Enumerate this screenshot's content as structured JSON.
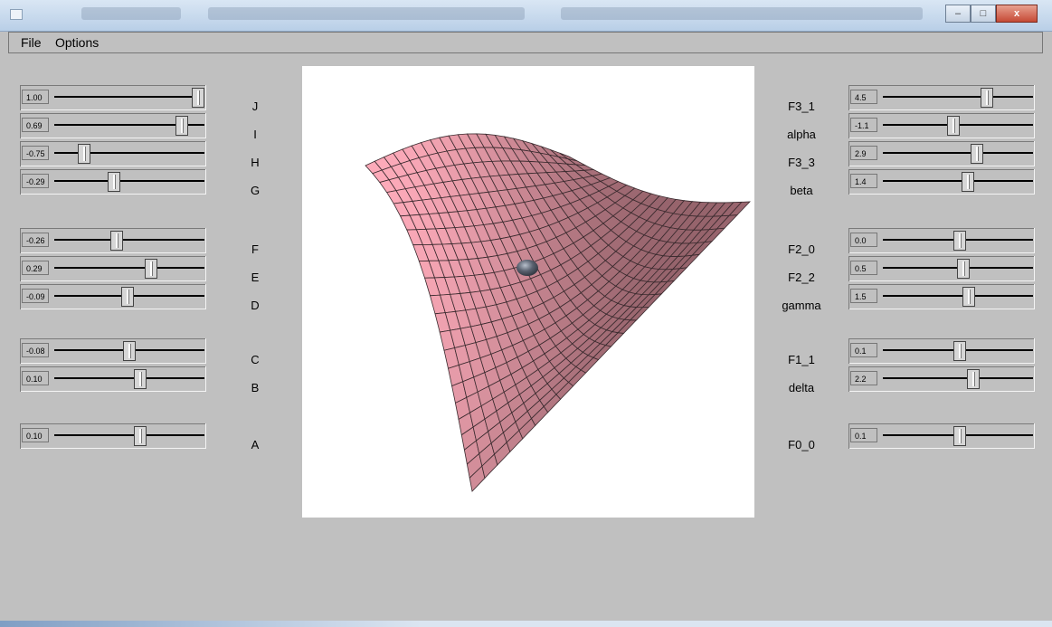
{
  "menu": {
    "file": "File",
    "options": "Options"
  },
  "window": {
    "minimize": "–",
    "maximize": "□",
    "close": "x"
  },
  "left_sliders": [
    {
      "label": "J",
      "value": "1.00",
      "pos": 1.0
    },
    {
      "label": "I",
      "value": "0.69",
      "pos": 0.88
    },
    {
      "label": "H",
      "value": "-0.75",
      "pos": 0.17
    },
    {
      "label": "G",
      "value": "-0.29",
      "pos": 0.39
    },
    {
      "label": "F",
      "value": "-0.26",
      "pos": 0.41
    },
    {
      "label": "E",
      "value": "0.29",
      "pos": 0.66
    },
    {
      "label": "D",
      "value": "-0.09",
      "pos": 0.49
    },
    {
      "label": "C",
      "value": "-0.08",
      "pos": 0.5
    },
    {
      "label": "B",
      "value": "0.10",
      "pos": 0.58
    },
    {
      "label": "A",
      "value": "0.10",
      "pos": 0.58
    }
  ],
  "right_sliders": [
    {
      "label": "F3_1",
      "value": "4.5",
      "pos": 0.71
    },
    {
      "label": "alpha",
      "value": "-1.1",
      "pos": 0.47
    },
    {
      "label": "F3_3",
      "value": "2.9",
      "pos": 0.64
    },
    {
      "label": "beta",
      "value": "1.4",
      "pos": 0.57
    },
    {
      "label": "F2_0",
      "value": "0.0",
      "pos": 0.51
    },
    {
      "label": "F2_2",
      "value": "0.5",
      "pos": 0.54
    },
    {
      "label": "gamma",
      "value": "1.5",
      "pos": 0.58
    },
    {
      "label": "F1_1",
      "value": "0.1",
      "pos": 0.51
    },
    {
      "label": "delta",
      "value": "2.2",
      "pos": 0.61
    },
    {
      "label": "F0_0",
      "value": "0.1",
      "pos": 0.51
    }
  ],
  "colors": {
    "surface": "#e8a7b3",
    "grid": "#3a2a2e",
    "ball": "#5a6270",
    "background": "#c0c0c0"
  }
}
